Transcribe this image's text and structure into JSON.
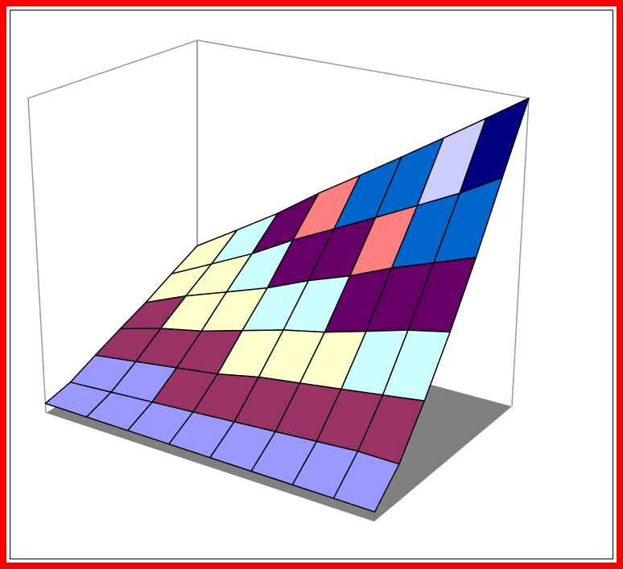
{
  "chart_data": {
    "type": "surface",
    "z": [
      [
        3,
        3,
        3,
        3,
        3,
        3,
        3,
        3,
        3
      ],
      [
        5,
        6,
        7,
        8,
        9,
        10,
        11,
        12,
        12
      ],
      [
        9,
        11,
        13,
        15,
        18,
        20,
        22,
        24,
        26
      ],
      [
        13,
        17,
        20,
        24,
        28,
        31,
        35,
        39,
        42
      ],
      [
        17,
        23,
        28,
        33,
        39,
        44,
        50,
        55,
        60
      ],
      [
        22,
        29,
        36,
        44,
        51,
        58,
        65,
        72,
        80
      ],
      [
        27,
        36,
        45,
        55,
        64,
        73,
        82,
        91,
        100
      ]
    ],
    "zlim": [
      0,
      100
    ],
    "contour_levels": [
      0,
      10,
      20,
      30,
      40,
      50,
      60,
      70,
      80,
      90,
      100
    ],
    "band_colors": [
      "#9999ff",
      "#993366",
      "#ffffcc",
      "#ccffff",
      "#660066",
      "#ff8080",
      "#0066cc",
      "#ccccff",
      "#000080",
      "#ff00ff"
    ],
    "floor_color": "#808080"
  }
}
